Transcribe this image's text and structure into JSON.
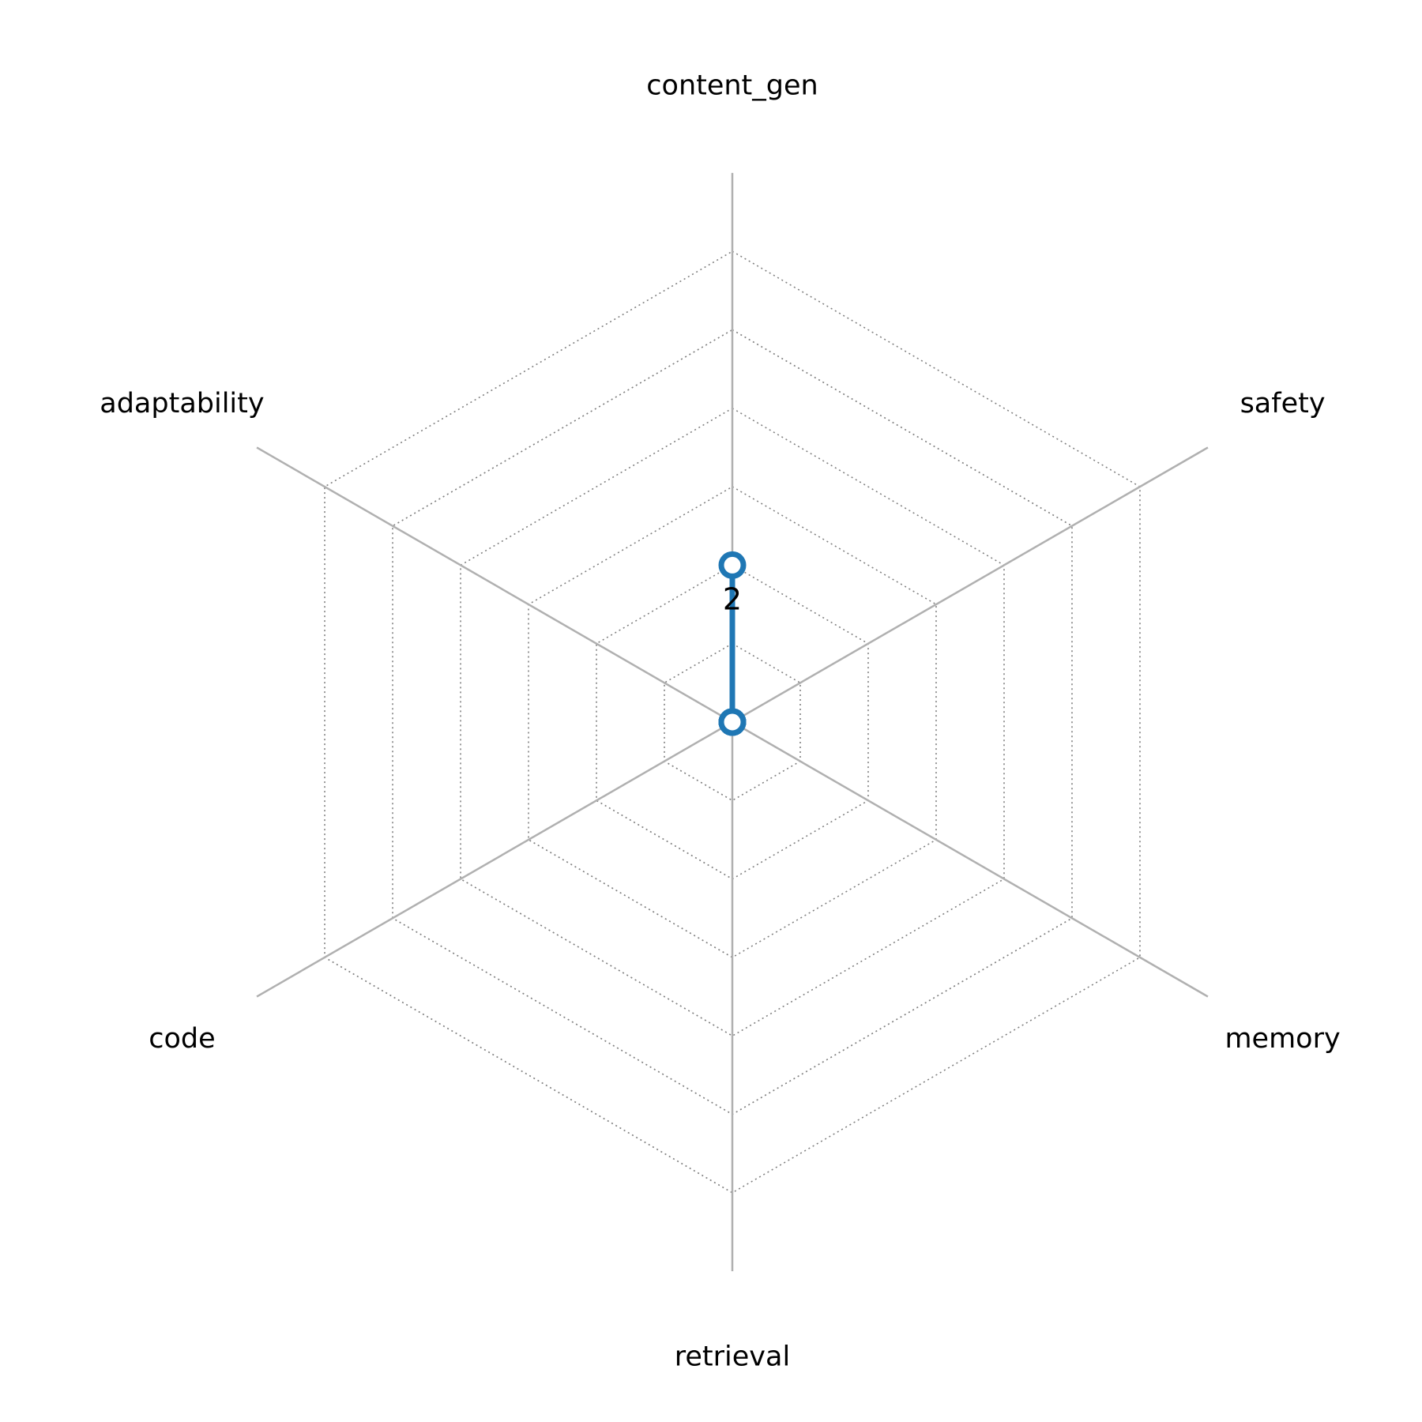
{
  "chart_data": {
    "type": "radar",
    "categories": [
      "content_gen",
      "safety",
      "memory",
      "retrieval",
      "code",
      "adaptability"
    ],
    "series": [
      {
        "values": [
          2,
          0,
          0,
          0,
          0,
          0
        ],
        "color": "#1f77b4"
      }
    ],
    "data_labels": [
      {
        "category": "content_gen",
        "text": "2"
      }
    ],
    "rlim": [
      0,
      7
    ],
    "grid_levels": [
      1,
      2,
      3,
      4,
      5,
      6
    ],
    "grid": true,
    "grid_style": "dotted",
    "axis_color": "#b0b0b0",
    "grid_color": "#808080"
  }
}
